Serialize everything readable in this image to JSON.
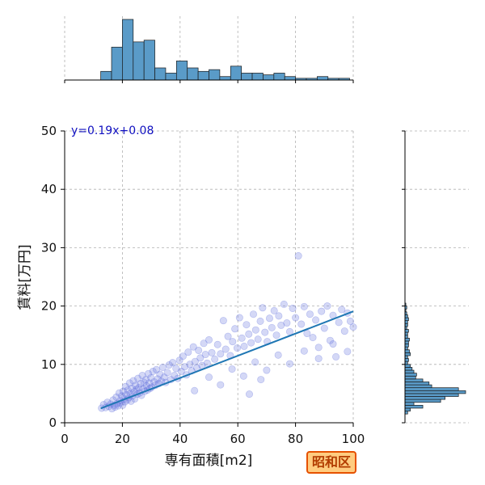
{
  "chart_data": {
    "type": "scatter",
    "xlabel": "専有面積[m2]",
    "ylabel": "賃料[万円]",
    "xlim": [
      0,
      100
    ],
    "ylim": [
      0,
      50
    ],
    "xticks": [
      "0",
      "20",
      "40",
      "60",
      "80",
      "100"
    ],
    "yticks": [
      "0",
      "10",
      "20",
      "30",
      "40",
      "50"
    ],
    "grid": true,
    "regression": {
      "label": "y=0.19x+0.08",
      "slope": 0.19,
      "intercept": 0.08,
      "x_range": [
        12.5,
        100
      ]
    },
    "badge": "昭和区",
    "x_histogram": {
      "bins": [
        [
          12.5,
          16.25
        ],
        [
          16.25,
          20
        ],
        [
          20,
          23.75
        ],
        [
          23.75,
          27.5
        ],
        [
          27.5,
          31.25
        ],
        [
          31.25,
          35
        ],
        [
          35,
          38.75
        ],
        [
          38.75,
          42.5
        ],
        [
          42.5,
          46.25
        ],
        [
          46.25,
          50
        ],
        [
          50,
          53.75
        ],
        [
          53.75,
          57.5
        ],
        [
          57.5,
          61.25
        ],
        [
          61.25,
          65
        ],
        [
          65,
          68.75
        ],
        [
          68.75,
          72.5
        ],
        [
          72.5,
          76.25
        ],
        [
          76.25,
          80
        ],
        [
          80,
          83.75
        ],
        [
          83.75,
          87.5
        ],
        [
          87.5,
          91.25
        ],
        [
          91.25,
          95
        ],
        [
          95,
          98.75
        ]
      ],
      "counts": [
        5,
        19,
        35,
        22,
        23,
        7,
        4,
        11,
        7,
        5,
        6,
        2,
        8,
        4,
        4,
        3,
        4,
        2,
        1,
        1,
        2,
        1,
        1
      ]
    },
    "y_histogram": {
      "bins": [
        [
          1.5,
          2
        ],
        [
          2,
          2.5
        ],
        [
          2.5,
          3
        ],
        [
          3,
          3.5
        ],
        [
          3.5,
          4
        ],
        [
          4,
          4.5
        ],
        [
          4.5,
          5
        ],
        [
          5,
          5.5
        ],
        [
          5.5,
          6
        ],
        [
          6,
          6.5
        ],
        [
          6.5,
          7
        ],
        [
          7,
          7.5
        ],
        [
          7.5,
          8
        ],
        [
          8,
          8.5
        ],
        [
          8.5,
          9
        ],
        [
          9,
          9.5
        ],
        [
          9.5,
          10
        ],
        [
          10,
          10.5
        ],
        [
          10.5,
          11
        ],
        [
          11,
          11.5
        ],
        [
          11.5,
          12
        ],
        [
          12,
          12.5
        ],
        [
          12.5,
          13
        ],
        [
          13,
          13.5
        ],
        [
          13.5,
          14
        ],
        [
          14,
          14.5
        ],
        [
          14.5,
          15
        ],
        [
          15,
          15.5
        ],
        [
          15.5,
          16
        ],
        [
          16,
          16.5
        ],
        [
          16.5,
          17
        ],
        [
          17,
          17.5
        ],
        [
          17.5,
          18
        ],
        [
          18,
          18.5
        ],
        [
          18.5,
          19
        ],
        [
          19,
          19.5
        ],
        [
          19.5,
          20
        ],
        [
          20,
          20.5
        ]
      ],
      "counts": [
        3,
        6,
        20,
        10,
        40,
        45,
        60,
        68,
        60,
        30,
        27,
        20,
        12,
        13,
        10,
        8,
        6,
        3,
        4,
        3,
        6,
        5,
        3,
        4,
        4,
        5,
        3,
        3,
        4,
        2,
        3,
        3,
        4,
        3,
        2,
        1,
        2,
        1
      ]
    },
    "points": [
      [
        12.8,
        2.5
      ],
      [
        13.5,
        3.1
      ],
      [
        14.2,
        2.6
      ],
      [
        14.8,
        3.5
      ],
      [
        15.3,
        2.8
      ],
      [
        15.9,
        3.2
      ],
      [
        16.4,
        2.4
      ],
      [
        16.8,
        3.9
      ],
      [
        17.2,
        3.0
      ],
      [
        17.5,
        2.7
      ],
      [
        17.9,
        4.4
      ],
      [
        18.2,
        3.3
      ],
      [
        18.6,
        2.9
      ],
      [
        18.9,
        5.1
      ],
      [
        19.2,
        3.8
      ],
      [
        19.5,
        3.4
      ],
      [
        19.8,
        4.6
      ],
      [
        20.1,
        3.0
      ],
      [
        20.3,
        5.4
      ],
      [
        20.6,
        4.1
      ],
      [
        20.9,
        3.6
      ],
      [
        21.1,
        6.2
      ],
      [
        21.4,
        4.8
      ],
      [
        21.7,
        3.9
      ],
      [
        21.9,
        5.6
      ],
      [
        22.2,
        4.3
      ],
      [
        22.5,
        6.8
      ],
      [
        22.7,
        5.0
      ],
      [
        23.0,
        3.7
      ],
      [
        23.3,
        5.9
      ],
      [
        23.5,
        4.6
      ],
      [
        23.8,
        7.2
      ],
      [
        24.1,
        5.3
      ],
      [
        24.3,
        4.1
      ],
      [
        24.6,
        6.4
      ],
      [
        24.9,
        5.7
      ],
      [
        25.2,
        4.9
      ],
      [
        25.4,
        7.6
      ],
      [
        25.7,
        6.0
      ],
      [
        26.0,
        5.1
      ],
      [
        26.3,
        6.7
      ],
      [
        26.6,
        4.7
      ],
      [
        26.9,
        8.1
      ],
      [
        27.2,
        5.8
      ],
      [
        27.5,
        6.9
      ],
      [
        27.8,
        5.4
      ],
      [
        28.1,
        7.4
      ],
      [
        28.4,
        6.3
      ],
      [
        28.7,
        5.6
      ],
      [
        29.0,
        8.4
      ],
      [
        29.3,
        6.8
      ],
      [
        29.6,
        5.9
      ],
      [
        29.9,
        7.7
      ],
      [
        30.2,
        6.1
      ],
      [
        30.6,
        8.8
      ],
      [
        31.0,
        7.0
      ],
      [
        31.4,
        6.4
      ],
      [
        31.8,
        9.1
      ],
      [
        32.2,
        7.5
      ],
      [
        32.6,
        6.7
      ],
      [
        33.0,
        8.3
      ],
      [
        33.5,
        7.1
      ],
      [
        34.0,
        9.5
      ],
      [
        34.5,
        7.8
      ],
      [
        35.0,
        6.9
      ],
      [
        35.6,
        8.6
      ],
      [
        36.2,
        9.9
      ],
      [
        36.8,
        7.4
      ],
      [
        37.4,
        10.3
      ],
      [
        38.0,
        8.1
      ],
      [
        38.6,
        9.3
      ],
      [
        39.2,
        7.6
      ],
      [
        39.8,
        10.7
      ],
      [
        40.4,
        8.8
      ],
      [
        41.0,
        11.4
      ],
      [
        41.6,
        9.6
      ],
      [
        42.2,
        8.2
      ],
      [
        42.8,
        12.1
      ],
      [
        43.4,
        10.0
      ],
      [
        44.0,
        8.9
      ],
      [
        44.6,
        13.0
      ],
      [
        45.2,
        10.5
      ],
      [
        45.8,
        9.4
      ],
      [
        46.4,
        12.4
      ],
      [
        47.0,
        11.1
      ],
      [
        47.6,
        9.8
      ],
      [
        48.2,
        13.6
      ],
      [
        48.8,
        11.7
      ],
      [
        49.4,
        10.2
      ],
      [
        50.0,
        14.2
      ],
      [
        51.0,
        12.0
      ],
      [
        52.0,
        10.9
      ],
      [
        53.0,
        13.4
      ],
      [
        54.0,
        11.8
      ],
      [
        55.0,
        17.5
      ],
      [
        55.8,
        12.6
      ],
      [
        56.6,
        14.8
      ],
      [
        57.4,
        11.5
      ],
      [
        58.2,
        13.9
      ],
      [
        59.0,
        16.1
      ],
      [
        59.8,
        12.8
      ],
      [
        60.6,
        18.0
      ],
      [
        61.4,
        14.5
      ],
      [
        62.2,
        13.1
      ],
      [
        63.0,
        16.8
      ],
      [
        63.8,
        15.2
      ],
      [
        64.6,
        13.7
      ],
      [
        65.4,
        18.6
      ],
      [
        66.2,
        15.9
      ],
      [
        67.0,
        14.3
      ],
      [
        67.8,
        17.4
      ],
      [
        68.6,
        19.7
      ],
      [
        69.4,
        15.5
      ],
      [
        70.2,
        13.9
      ],
      [
        71.0,
        17.9
      ],
      [
        71.8,
        16.3
      ],
      [
        72.6,
        19.2
      ],
      [
        73.4,
        15.0
      ],
      [
        74.2,
        18.3
      ],
      [
        75.0,
        16.7
      ],
      [
        76.0,
        20.3
      ],
      [
        77.0,
        17.1
      ],
      [
        78.0,
        15.6
      ],
      [
        79.0,
        19.6
      ],
      [
        80.0,
        18.0
      ],
      [
        81.0,
        28.6
      ],
      [
        82.0,
        16.9
      ],
      [
        83.0,
        19.9
      ],
      [
        84.0,
        15.3
      ],
      [
        85.0,
        18.6
      ],
      [
        86.0,
        14.6
      ],
      [
        87.0,
        17.6
      ],
      [
        88.0,
        12.9
      ],
      [
        89.0,
        19.1
      ],
      [
        90.0,
        16.2
      ],
      [
        91.0,
        20.0
      ],
      [
        92.0,
        14.1
      ],
      [
        93.0,
        18.4
      ],
      [
        94.0,
        11.3
      ],
      [
        95.0,
        17.2
      ],
      [
        96.0,
        19.4
      ],
      [
        97.0,
        15.7
      ],
      [
        98.0,
        18.8
      ],
      [
        99.0,
        17.4
      ],
      [
        100.0,
        16.4
      ],
      [
        45.0,
        5.5
      ],
      [
        50.0,
        7.8
      ],
      [
        54.0,
        6.5
      ],
      [
        58.0,
        9.2
      ],
      [
        62.0,
        8.0
      ],
      [
        66.0,
        10.4
      ],
      [
        70.0,
        9.0
      ],
      [
        74.0,
        11.6
      ],
      [
        78.0,
        10.1
      ],
      [
        83.0,
        12.3
      ],
      [
        88.0,
        11.0
      ],
      [
        93.0,
        13.5
      ],
      [
        98.0,
        12.2
      ],
      [
        64.0,
        4.9
      ],
      [
        68.0,
        7.4
      ]
    ]
  }
}
